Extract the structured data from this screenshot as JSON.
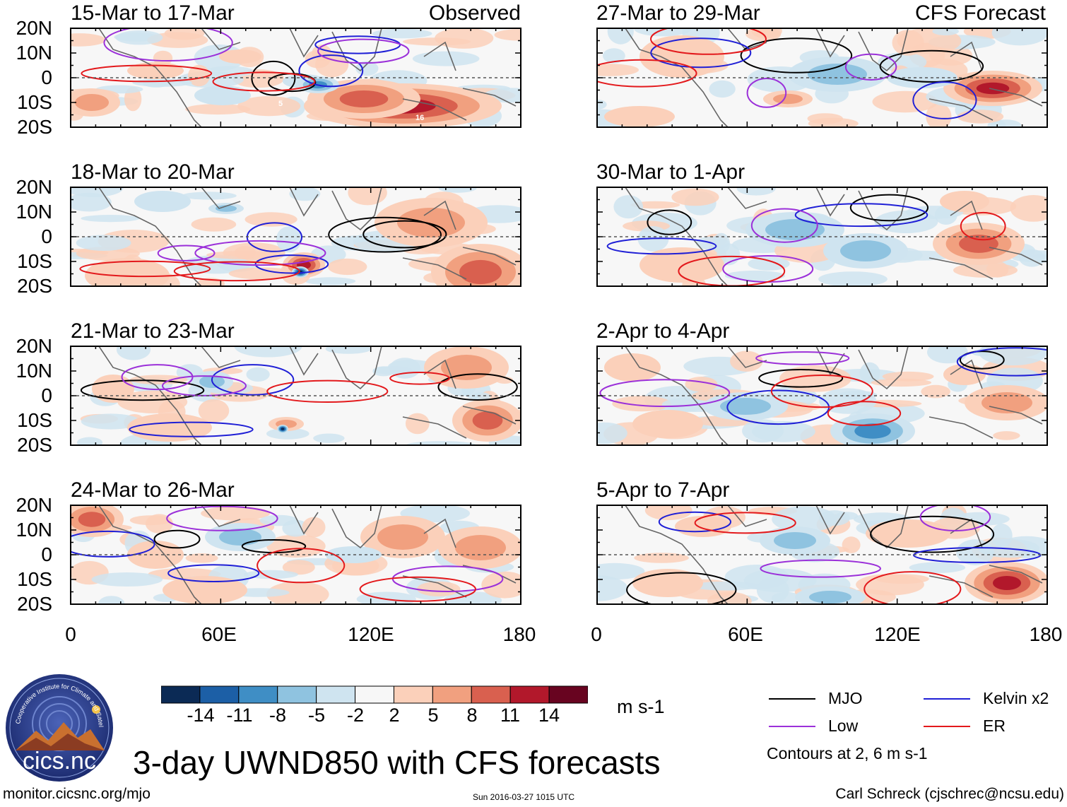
{
  "header": {
    "left_label": "Observed",
    "right_label": "CFS Forecast"
  },
  "chart_data": {
    "type": "heatmap",
    "title": "3-day UWND850 with CFS forecasts",
    "variable": "850-hPa zonal wind anomaly",
    "units": "m s-1",
    "x_axis": {
      "range": [
        0,
        180
      ],
      "tick_labels": [
        "0",
        "60E",
        "120E",
        "180"
      ]
    },
    "y_axis": {
      "range": [
        -20,
        20
      ],
      "tick_labels": [
        "20N",
        "10N",
        "0",
        "10S",
        "20S"
      ]
    },
    "color_scale": {
      "levels": [
        -14,
        -11,
        -8,
        -5,
        -2,
        2,
        5,
        8,
        11,
        14
      ],
      "tick_labels": [
        "-14",
        "-11",
        "-8",
        "-5",
        "-2",
        "2",
        "5",
        "8",
        "11",
        "14"
      ],
      "colors": [
        "#0b2a55",
        "#1c5fa6",
        "#3f8ec5",
        "#8fc3e0",
        "#cfe4f0",
        "#f7f7f7",
        "#fbd0ba",
        "#f1a07f",
        "#d9604f",
        "#b2182b",
        "#680420"
      ]
    },
    "panels": [
      {
        "title": "15-Mar to 17-Mar",
        "source": "Observed",
        "annotations": [
          "5",
          "16"
        ]
      },
      {
        "title": "18-Mar to 20-Mar",
        "source": "Observed"
      },
      {
        "title": "21-Mar to 23-Mar",
        "source": "Observed"
      },
      {
        "title": "24-Mar to 26-Mar",
        "source": "Observed"
      },
      {
        "title": "27-Mar to 29-Mar",
        "source": "CFS Forecast"
      },
      {
        "title": "30-Mar to 1-Apr",
        "source": "CFS Forecast"
      },
      {
        "title": "2-Apr to 4-Apr",
        "source": "CFS Forecast"
      },
      {
        "title": "5-Apr to 7-Apr",
        "source": "CFS Forecast"
      }
    ],
    "contour_legend": [
      {
        "name": "MJO",
        "color": "#000000"
      },
      {
        "name": "Kelvin x2",
        "color": "#1f1fd6"
      },
      {
        "name": "Low",
        "color": "#9b30d9"
      },
      {
        "name": "ER",
        "color": "#e3191c"
      }
    ],
    "contour_note": "Contours at 2, 6 m s-1"
  },
  "footer": {
    "logo_text": "cics.nc",
    "logo_ring_text": "Cooperative Institute for Climate and Satellites",
    "left_url": "monitor.cicsnc.org/mjo",
    "timestamp": "Sun 2016-03-27 1015 UTC",
    "credit": "Carl Schreck (cjschrec@ncsu.edu)"
  }
}
